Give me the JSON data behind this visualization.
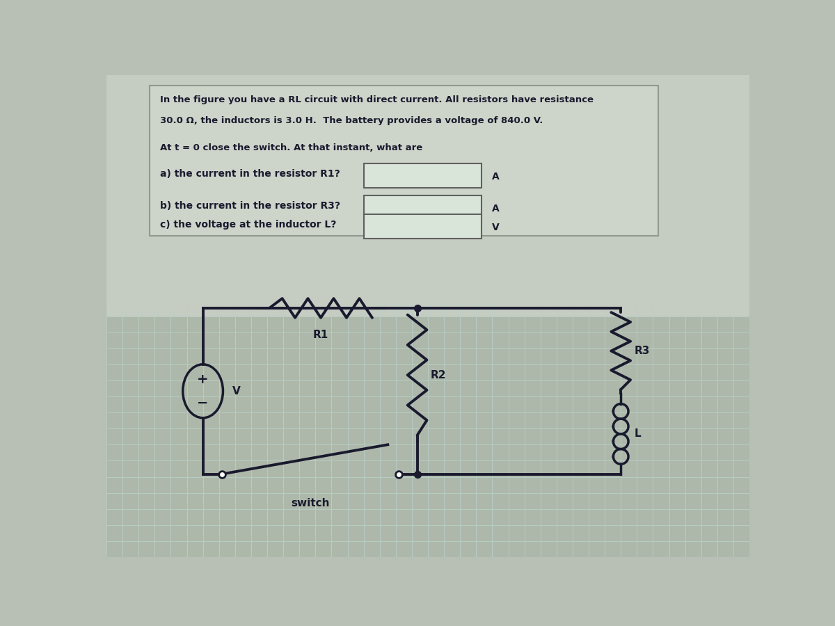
{
  "title_line1": "In the figure you have a RL circuit with direct current. All resistors have resistance",
  "title_line2": "30.0 Ω, the inductors is 3.0 H.  The battery provides a voltage of 840.0 V.",
  "q_intro": "At t = 0 close the switch. At that instant, what are",
  "q_a": "a) the current in the resistor R1?",
  "q_b": "b) the current in the resistor R3?",
  "q_c": "c) the voltage at the inductor L?",
  "unit_a": "A",
  "unit_b": "A",
  "unit_c": "V",
  "bg_top": "#c8cfc8",
  "bg_mid": "#b8c0b0",
  "bg_circuit": "#b0bca8",
  "grid_color": "#a8c0b8",
  "text_area_color": "#d0d5cc",
  "answer_box_color": "#dde8e0",
  "wire_color": "#1a1a2e",
  "component_color": "#1a1a2e"
}
